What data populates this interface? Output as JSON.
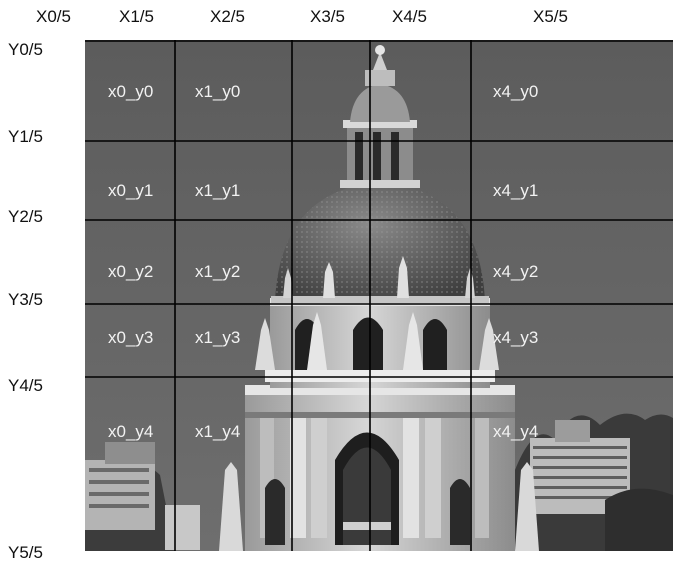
{
  "col_labels": [
    "X0/5",
    "X1/5",
    "X2/5",
    "X3/5",
    "X4/5",
    "X5/5"
  ],
  "row_labels": [
    "Y0/5",
    "Y1/5",
    "Y2/5",
    "Y3/5",
    "Y4/5",
    "Y5/5"
  ],
  "cells": {
    "row0": [
      "x0_y0",
      "x1_y0",
      "x4_y0"
    ],
    "row1": [
      "x0_y1",
      "x1_y1",
      "x4_y1"
    ],
    "row2": [
      "x0_y2",
      "x1_y2",
      "x4_y2"
    ],
    "row3": [
      "x0_y3",
      "x1_y3",
      "x4_y3"
    ],
    "row4": [
      "x0_y4",
      "x1_y4",
      "x4_y4"
    ]
  },
  "colors": {
    "sky": "#636363",
    "grid": "#000000",
    "cell_text": "#f2f2f2"
  }
}
